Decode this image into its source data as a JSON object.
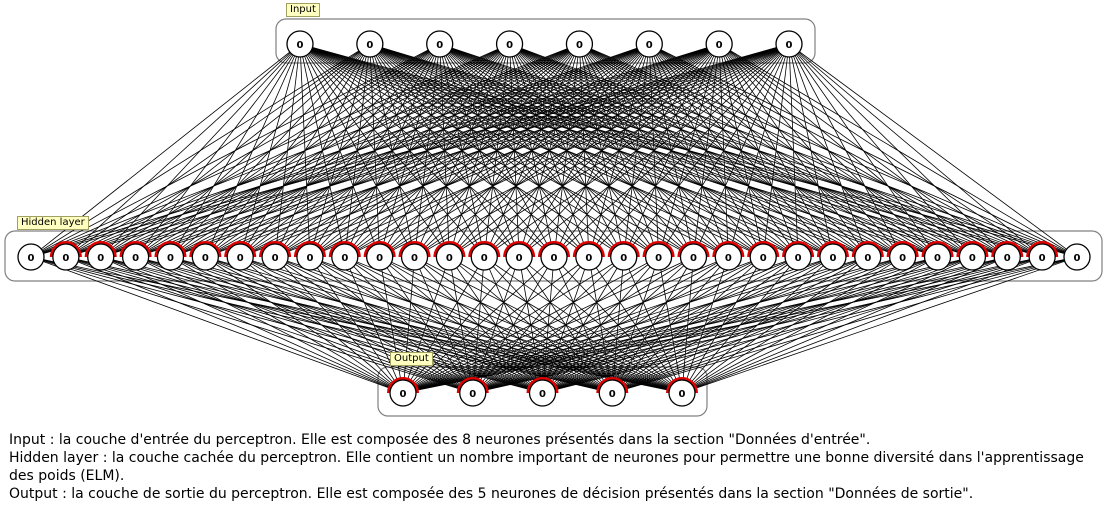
{
  "layers": {
    "input": {
      "label": "Input",
      "count": 8,
      "value": "0"
    },
    "hidden": {
      "label": "Hidden layer",
      "count": 31,
      "value": "0"
    },
    "output": {
      "label": "Output",
      "count": 5,
      "value": "0"
    }
  },
  "caption": {
    "line1": "Input : la couche d'entrée du perceptron. Elle est composée des 8 neurones présentés dans la section \"Données d'entrée\".",
    "line2": "Hidden layer : la couche cachée du perceptron. Elle contient un nombre important de neurones pour permettre une bonne diversité dans l'apprentissage des poids (ELM).",
    "line3": "Output : la couche de sortie du perceptron. Elle est composée des 5 neurones de décision présentés dans la section \"Données de sortie\"."
  },
  "colors": {
    "edge": "#000000",
    "node_fill": "#ffffff",
    "node_stroke": "#000000",
    "accent_arc": "#e00000",
    "frame": "#808080",
    "tag_fill": "#ffffc0"
  }
}
